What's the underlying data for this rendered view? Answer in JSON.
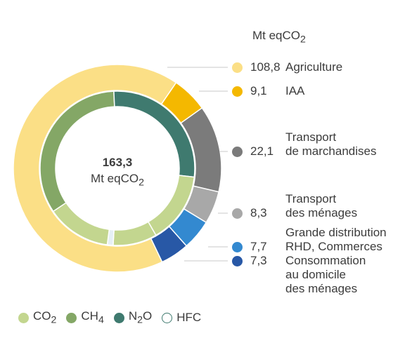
{
  "chart_data": {
    "type": "pie",
    "unit": "Mt eqCO2",
    "total": "163,3",
    "total_unit": "Mt eqCO2",
    "outer_ring": [
      {
        "value": 108.8,
        "value_label": "108,8",
        "label": "Agriculture",
        "color": "#fbdf86"
      },
      {
        "value": 9.1,
        "value_label": "9,1",
        "label": "IAA",
        "color": "#f4b800"
      },
      {
        "value": 22.1,
        "value_label": "22,1",
        "label": "Transport\nde marchandises",
        "color": "#7b7b7b"
      },
      {
        "value": 8.3,
        "value_label": "8,3",
        "label": "Transport\ndes ménages",
        "color": "#a8a8a8"
      },
      {
        "value": 7.7,
        "value_label": "7,7",
        "label": "Grande distribution\nRHD, Commerces",
        "color": "#3389d0"
      },
      {
        "value": 7.3,
        "value_label": "7,3",
        "label": "Consommation\nau domicile\ndes ménages",
        "color": "#2858a6"
      }
    ],
    "inner_ring": [
      {
        "gas": "CO2",
        "value": 15,
        "color": "#c3d68f"
      },
      {
        "gas": "HFC",
        "value": 2,
        "color": "#e6f0f6"
      },
      {
        "gas": "CO2",
        "value": 22,
        "color": "#c3d68f"
      },
      {
        "gas": "CH4",
        "value": 55,
        "color": "#84a766"
      },
      {
        "gas": "N2O",
        "value": 45,
        "color": "#3f7a6f"
      },
      {
        "gas": "CO2",
        "value": 24.3,
        "color": "#c3d68f"
      }
    ],
    "gas_legend": [
      {
        "name": "CO",
        "sub": "2",
        "color": "#c3d68f"
      },
      {
        "name": "CH",
        "sub": "4",
        "color": "#84a766"
      },
      {
        "name": "N",
        "sub": "2",
        "tail": "O",
        "color": "#3f7a6f"
      },
      {
        "name": "HFC",
        "sub": "",
        "color": "#ffffff",
        "border": "#3f7a6f"
      }
    ]
  }
}
